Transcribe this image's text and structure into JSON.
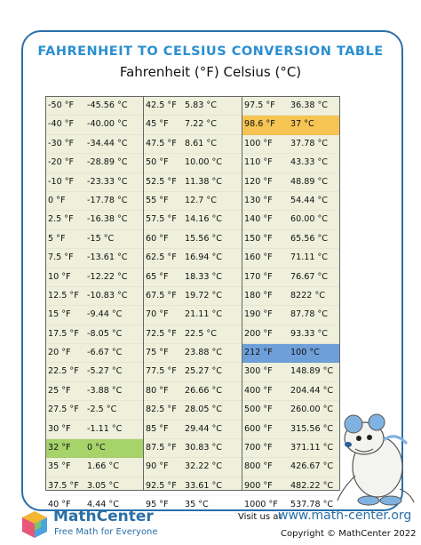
{
  "title": "FAHRENHEIT TO CELSIUS CONVERSION TABLE",
  "subtitle": "Fahrenheit (°F) Celsius (°C)",
  "table": {
    "col1": [
      {
        "f": "-50 °F",
        "c": "-45.56 °C"
      },
      {
        "f": "-40 °F",
        "c": "-40.00 °C"
      },
      {
        "f": "-30 °F",
        "c": "-34.44 °C"
      },
      {
        "f": "-20 °F",
        "c": "-28.89 °C"
      },
      {
        "f": "-10 °F",
        "c": "-23.33 °C"
      },
      {
        "f": "0 °F",
        "c": "-17.78 °C"
      },
      {
        "f": "2.5 °F",
        "c": "-16.38 °C"
      },
      {
        "f": "5 °F",
        "c": "-15 °C"
      },
      {
        "f": "7.5 °F",
        "c": "-13.61 °C"
      },
      {
        "f": "10 °F",
        "c": "-12.22 °C"
      },
      {
        "f": "12.5 °F",
        "c": "-10.83 °C"
      },
      {
        "f": "15 °F",
        "c": "-9.44 °C"
      },
      {
        "f": "17.5 °F",
        "c": "-8.05 °C"
      },
      {
        "f": "20 °F",
        "c": "-6.67 °C"
      },
      {
        "f": "22.5 °F",
        "c": "-5.27 °C"
      },
      {
        "f": "25 °F",
        "c": "-3.88 °C"
      },
      {
        "f": "27.5 °F",
        "c": "-2.5 °C"
      },
      {
        "f": "30 °F",
        "c": "-1.11 °C"
      },
      {
        "f": "32 °F",
        "c": "0 °C"
      },
      {
        "f": "35 °F",
        "c": "1.66 °C"
      },
      {
        "f": "37.5 °F",
        "c": "3.05 °C"
      },
      {
        "f": "40 °F",
        "c": "4.44 °C"
      }
    ],
    "col2": [
      {
        "f": "42.5 °F",
        "c": "5.83 °C"
      },
      {
        "f": "45 °F",
        "c": "7.22 °C"
      },
      {
        "f": "47.5 °F",
        "c": "8.61 °C"
      },
      {
        "f": "50 °F",
        "c": "10.00 °C"
      },
      {
        "f": "52.5 °F",
        "c": "11.38 °C"
      },
      {
        "f": "55 °F",
        "c": "12.7 °C"
      },
      {
        "f": "57.5 °F",
        "c": "14.16 °C"
      },
      {
        "f": "60 °F",
        "c": "15.56 °C"
      },
      {
        "f": "62.5 °F",
        "c": "16.94 °C"
      },
      {
        "f": "65 °F",
        "c": "18.33 °C"
      },
      {
        "f": "67.5 °F",
        "c": "19.72 °C"
      },
      {
        "f": "70 °F",
        "c": "21.11 °C"
      },
      {
        "f": "72.5 °F",
        "c": "22.5 °C"
      },
      {
        "f": "75 °F",
        "c": "23.88 °C"
      },
      {
        "f": "77.5 °F",
        "c": "25.27 °C"
      },
      {
        "f": "80 °F",
        "c": "26.66 °C"
      },
      {
        "f": "82.5 °F",
        "c": "28.05 °C"
      },
      {
        "f": "85 °F",
        "c": "29.44 °C"
      },
      {
        "f": "87.5 °F",
        "c": "30.83 °C"
      },
      {
        "f": "90 °F",
        "c": "32.22 °C"
      },
      {
        "f": "92.5 °F",
        "c": "33.61 °C"
      },
      {
        "f": "95 °F",
        "c": "35 °C"
      }
    ],
    "col3": [
      {
        "f": "97.5 °F",
        "c": "36.38 °C"
      },
      {
        "f": "98.6 °F",
        "c": "37 °C"
      },
      {
        "f": "100 °F",
        "c": "37.78 °C"
      },
      {
        "f": "110 °F",
        "c": "43.33 °C"
      },
      {
        "f": "120 °F",
        "c": "48.89 °C"
      },
      {
        "f": "130 °F",
        "c": "54.44 °C"
      },
      {
        "f": "140 °F",
        "c": "60.00 °C"
      },
      {
        "f": "150 °F",
        "c": "65.56 °C"
      },
      {
        "f": "160 °F",
        "c": "71.11 °C"
      },
      {
        "f": "170 °F",
        "c": "76.67 °C"
      },
      {
        "f": "180 °F",
        "c": "8222 °C"
      },
      {
        "f": "190 °F",
        "c": "87.78 °C"
      },
      {
        "f": "200 °F",
        "c": "93.33 °C"
      },
      {
        "f": "212 °F",
        "c": "100 °C"
      },
      {
        "f": "300 °F",
        "c": "148.89 °C"
      },
      {
        "f": "400 °F",
        "c": "204.44 °C"
      },
      {
        "f": "500 °F",
        "c": "260.00 °C"
      },
      {
        "f": "600 °F",
        "c": "315.56 °C"
      },
      {
        "f": "700 °F",
        "c": "371.11 °C"
      },
      {
        "f": "800 °F",
        "c": "426.67 °C"
      },
      {
        "f": "900 °F",
        "c": "482.22 °C"
      },
      {
        "f": "1000 °F",
        "c": "537.78 °C"
      }
    ]
  },
  "highlights": {
    "orange": "#f5c453",
    "blue": "#6f9fd8",
    "green": "#a7d36b"
  },
  "footer": {
    "brand": "MathCenter",
    "tagline": "Free Math for Everyone",
    "visit_label": "Visit us at",
    "url": "www.math-center.org",
    "copyright": "Copyright © MathCenter 2022"
  },
  "icons": {
    "logo": "cube-logo-icon",
    "mascot": "mouse-mascot-icon"
  }
}
